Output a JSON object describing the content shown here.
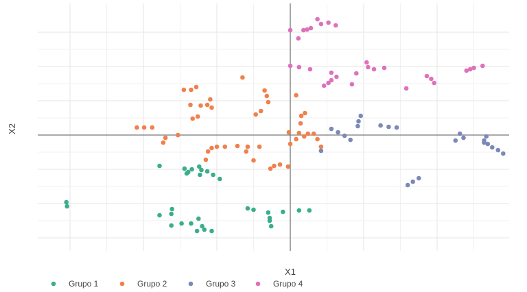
{
  "chart_data": {
    "type": "scatter",
    "title": "",
    "xlabel": "X1",
    "ylabel": "X2",
    "xlim": [
      -3.1,
      2.9
    ],
    "ylim": [
      -1.7,
      1.75
    ],
    "grid": true,
    "axes_through_origin": true,
    "legend_position": "bottom",
    "series": [
      {
        "name": "Grupo 1",
        "color": "#3aae8c",
        "points": [
          [
            -3.05,
            -0.98
          ],
          [
            -3.04,
            -1.04
          ],
          [
            -1.78,
            -0.45
          ],
          [
            -1.78,
            -1.17
          ],
          [
            -1.61,
            -1.08
          ],
          [
            -1.62,
            -1.15
          ],
          [
            -1.62,
            -1.32
          ],
          [
            -1.44,
            -0.49
          ],
          [
            -1.39,
            -0.54
          ],
          [
            -1.34,
            -0.5
          ],
          [
            -1.41,
            -0.56
          ],
          [
            -1.48,
            -1.29
          ],
          [
            -1.35,
            -1.29
          ],
          [
            -1.25,
            -1.22
          ],
          [
            -1.21,
            -0.51
          ],
          [
            -1.24,
            -0.46
          ],
          [
            -1.13,
            -0.53
          ],
          [
            -1.23,
            -0.58
          ],
          [
            -1.05,
            -0.58
          ],
          [
            -0.96,
            -0.64
          ],
          [
            -1.27,
            -1.4
          ],
          [
            -1.2,
            -1.33
          ],
          [
            -1.17,
            -1.38
          ],
          [
            -1.07,
            -1.4
          ],
          [
            -0.58,
            -1.07
          ],
          [
            -0.5,
            -1.09
          ],
          [
            -0.3,
            -1.13
          ],
          [
            -0.28,
            -1.21
          ],
          [
            -0.28,
            -1.25
          ],
          [
            -0.26,
            -1.33
          ],
          [
            -0.1,
            -1.12
          ],
          [
            0.12,
            -1.1
          ],
          [
            0.26,
            -1.1
          ]
        ]
      },
      {
        "name": "Grupo 2",
        "color": "#f0804c",
        "points": [
          [
            -2.09,
            0.11
          ],
          [
            -1.99,
            0.11
          ],
          [
            -1.88,
            0.11
          ],
          [
            -1.7,
            -0.04
          ],
          [
            -1.73,
            -0.11
          ],
          [
            -1.53,
            0.0
          ],
          [
            -1.45,
            0.66
          ],
          [
            -1.35,
            0.66
          ],
          [
            -1.28,
            0.7
          ],
          [
            -1.36,
            0.44
          ],
          [
            -1.33,
            0.24
          ],
          [
            -1.26,
            0.27
          ],
          [
            -1.22,
            0.43
          ],
          [
            -1.13,
            0.44
          ],
          [
            -1.09,
            0.52
          ],
          [
            -1.07,
            0.4
          ],
          [
            -1.15,
            -0.36
          ],
          [
            -1.07,
            -0.19
          ],
          [
            -1.12,
            -0.24
          ],
          [
            -1.0,
            -0.17
          ],
          [
            -0.89,
            -0.17
          ],
          [
            -0.72,
            -0.16
          ],
          [
            -0.65,
            0.84
          ],
          [
            -0.6,
            -0.24
          ],
          [
            -0.58,
            -0.17
          ],
          [
            -0.42,
            -0.17
          ],
          [
            -0.5,
            -0.37
          ],
          [
            -0.47,
            0.3
          ],
          [
            -0.4,
            0.35
          ],
          [
            -0.35,
            0.65
          ],
          [
            -0.3,
            0.48
          ],
          [
            -0.32,
            0.57
          ],
          [
            -0.27,
            -0.49
          ],
          [
            -0.22,
            -0.45
          ],
          [
            -0.14,
            -0.43
          ],
          [
            -0.02,
            0.04
          ],
          [
            -0.03,
            -0.46
          ],
          [
            0.0,
            -0.13
          ],
          [
            0.08,
            -0.06
          ],
          [
            0.08,
            0.58
          ],
          [
            0.12,
            0.03
          ],
          [
            0.14,
            0.17
          ],
          [
            0.15,
            0.28
          ],
          [
            0.2,
            0.32
          ],
          [
            0.19,
            -0.02
          ],
          [
            0.24,
            0.02
          ],
          [
            0.32,
            0.02
          ],
          [
            0.37,
            -0.06
          ],
          [
            0.42,
            -0.17
          ]
        ]
      },
      {
        "name": "Grupo 3",
        "color": "#7b88b8",
        "points": [
          [
            0.56,
            0.09
          ],
          [
            0.65,
            0.04
          ],
          [
            0.74,
            -0.01
          ],
          [
            0.82,
            -0.07
          ],
          [
            0.92,
            0.13
          ],
          [
            0.93,
            0.2
          ],
          [
            0.96,
            0.28
          ],
          [
            0.42,
            -0.23
          ],
          [
            1.23,
            0.14
          ],
          [
            1.34,
            0.12
          ],
          [
            1.45,
            0.11
          ],
          [
            1.6,
            -0.73
          ],
          [
            1.67,
            -0.68
          ],
          [
            1.75,
            -0.63
          ],
          [
            2.25,
            -0.08
          ],
          [
            2.31,
            0.02
          ],
          [
            2.36,
            -0.04
          ],
          [
            2.64,
            -0.08
          ],
          [
            2.64,
            -0.11
          ],
          [
            2.67,
            -0.02
          ],
          [
            2.69,
            -0.13
          ],
          [
            2.75,
            -0.18
          ],
          [
            2.83,
            -0.22
          ],
          [
            2.9,
            -0.27
          ]
        ]
      },
      {
        "name": "Grupo 4",
        "color": "#dd72bc",
        "points": [
          [
            0.0,
            1.53
          ],
          [
            0.11,
            1.41
          ],
          [
            0.18,
            1.53
          ],
          [
            0.23,
            1.54
          ],
          [
            0.28,
            1.56
          ],
          [
            0.37,
            1.69
          ],
          [
            0.42,
            1.62
          ],
          [
            0.52,
            1.64
          ],
          [
            0.62,
            1.6
          ],
          [
            0.0,
            1.01
          ],
          [
            0.12,
            0.99
          ],
          [
            0.27,
            0.96
          ],
          [
            0.56,
            0.91
          ],
          [
            0.63,
            0.85
          ],
          [
            0.56,
            0.8
          ],
          [
            0.52,
            0.76
          ],
          [
            0.46,
            0.72
          ],
          [
            0.84,
            0.74
          ],
          [
            0.9,
            0.9
          ],
          [
            1.04,
            1.06
          ],
          [
            1.06,
            0.99
          ],
          [
            1.14,
            0.96
          ],
          [
            1.28,
            0.98
          ],
          [
            1.58,
            0.68
          ],
          [
            1.86,
            0.86
          ],
          [
            1.92,
            0.82
          ],
          [
            1.96,
            0.76
          ],
          [
            2.4,
            0.94
          ],
          [
            2.45,
            0.96
          ],
          [
            2.5,
            0.98
          ],
          [
            2.62,
            1.01
          ]
        ]
      }
    ]
  }
}
